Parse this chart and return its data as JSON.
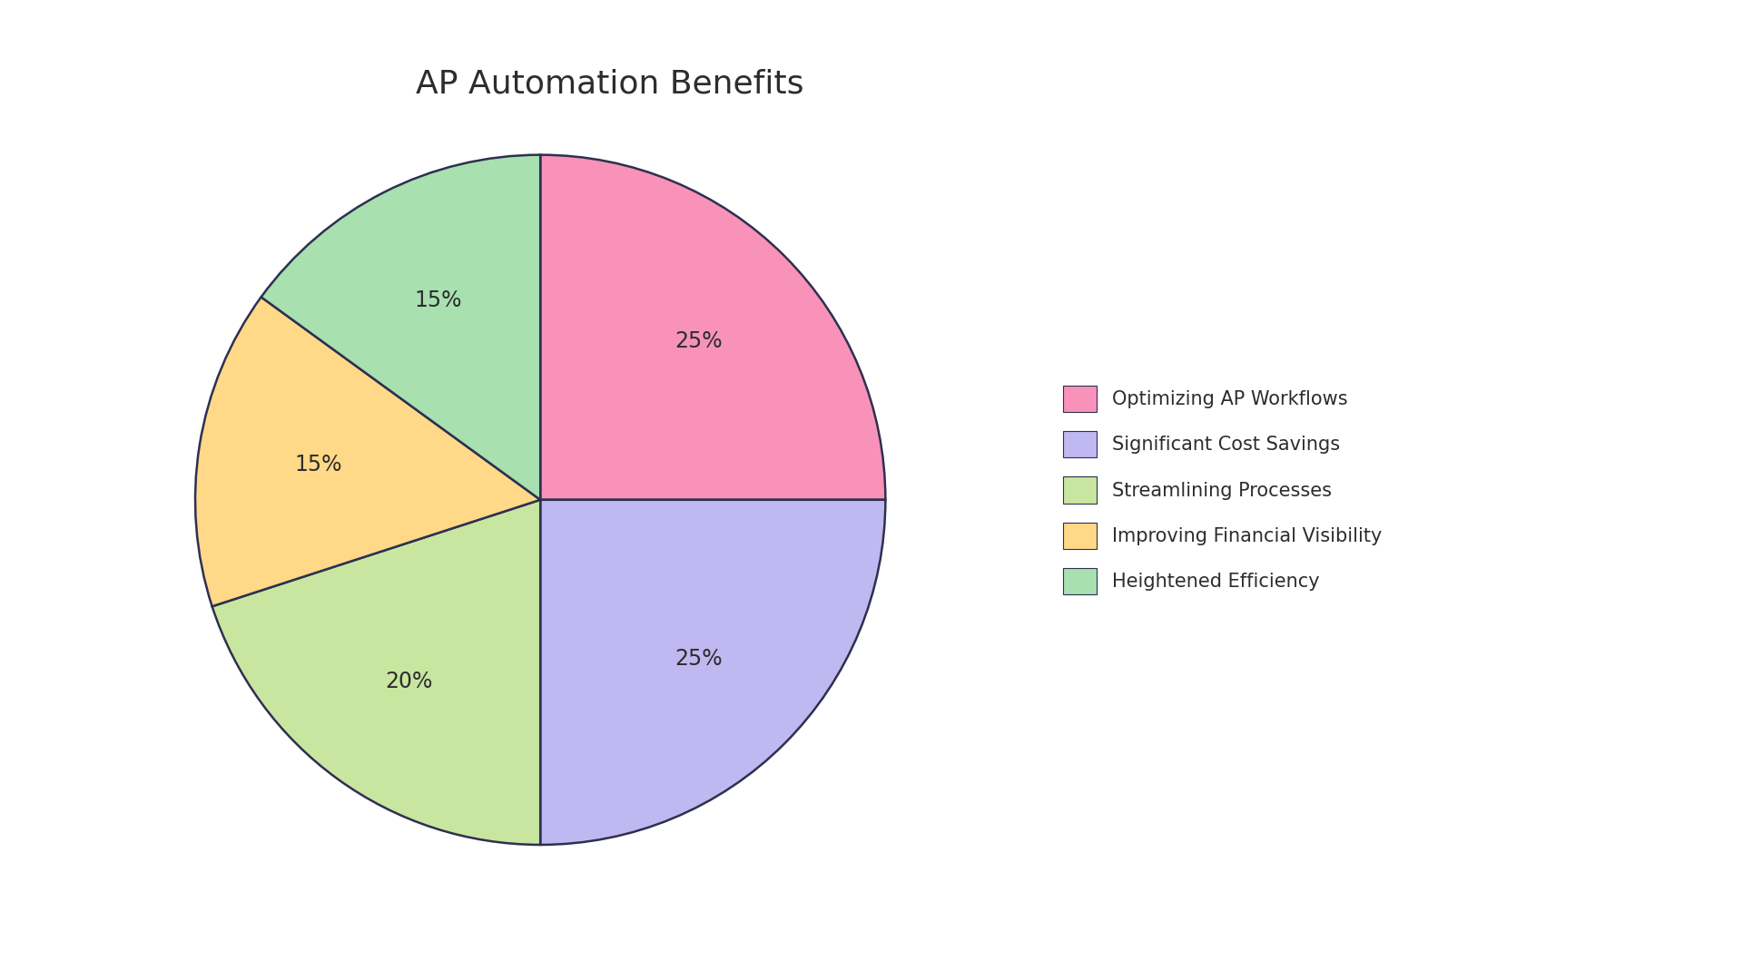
{
  "title": "AP Automation Benefits",
  "title_fontsize": 26,
  "title_color": "#2d2d2d",
  "slices": [
    {
      "label": "Optimizing AP Workflows",
      "value": 25,
      "color": "#f892b8"
    },
    {
      "label": "Significant Cost Savings",
      "value": 25,
      "color": "#c0b8f0"
    },
    {
      "label": "Streamlining Processes",
      "value": 20,
      "color": "#c8e6a0"
    },
    {
      "label": "Improving Financial Visibility",
      "value": 15,
      "color": "#ffd888"
    },
    {
      "label": "Heightened Efficiency",
      "value": 15,
      "color": "#a8e0b0"
    }
  ],
  "background_color": "#ffffff",
  "pie_edge_color": "#2d3050",
  "pie_linewidth": 1.8,
  "autopct_fontsize": 17,
  "autopct_color": "#2d2d2d",
  "legend_fontsize": 15,
  "startangle": 90,
  "pctdistance": 0.65
}
